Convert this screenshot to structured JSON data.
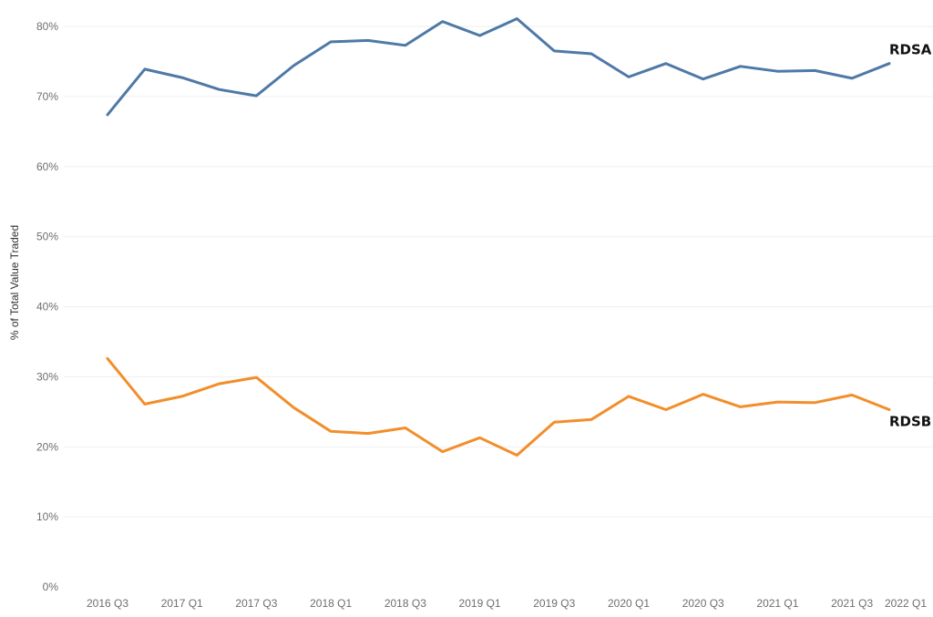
{
  "chart_data": {
    "type": "line",
    "title": "",
    "xlabel": "",
    "ylabel": "% of Total Value Traded",
    "ylim": [
      0,
      83
    ],
    "y_ticks": [
      "0%",
      "10%",
      "20%",
      "30%",
      "40%",
      "50%",
      "60%",
      "70%",
      "80%"
    ],
    "y_tick_values": [
      0,
      10,
      20,
      30,
      40,
      50,
      60,
      70,
      80
    ],
    "x_tick_labels": [
      "2016 Q3",
      "2017 Q1",
      "2017 Q3",
      "2018 Q1",
      "2018 Q3",
      "2019 Q1",
      "2019 Q3",
      "2020 Q1",
      "2020 Q3",
      "2021 Q1",
      "2021 Q3",
      "2022 Q1"
    ],
    "categories": [
      "2016 Q3",
      "2016 Q4",
      "2017 Q1",
      "2017 Q2",
      "2017 Q3",
      "2017 Q4",
      "2018 Q1",
      "2018 Q2",
      "2018 Q3",
      "2018 Q4",
      "2019 Q1",
      "2019 Q2",
      "2019 Q3",
      "2019 Q4",
      "2020 Q1",
      "2020 Q2",
      "2020 Q3",
      "2020 Q4",
      "2021 Q1",
      "2021 Q2",
      "2021 Q3",
      "2021 Q4"
    ],
    "grid": true,
    "legend": "none (labels at line ends)",
    "series": [
      {
        "name": "RDSA",
        "color": "#4e79a7",
        "values": [
          67.4,
          73.9,
          72.7,
          71.0,
          70.1,
          74.4,
          77.8,
          78.0,
          77.3,
          80.7,
          78.7,
          81.1,
          76.5,
          76.1,
          72.8,
          74.7,
          72.5,
          74.3,
          73.6,
          73.7,
          72.6,
          74.7
        ]
      },
      {
        "name": "RDSB",
        "color": "#f28e2b",
        "values": [
          32.6,
          26.1,
          27.2,
          29.0,
          29.9,
          25.6,
          22.2,
          21.9,
          22.7,
          19.3,
          21.3,
          18.8,
          23.5,
          23.9,
          27.2,
          25.3,
          27.5,
          25.7,
          26.4,
          26.3,
          27.4,
          25.3
        ]
      }
    ]
  }
}
